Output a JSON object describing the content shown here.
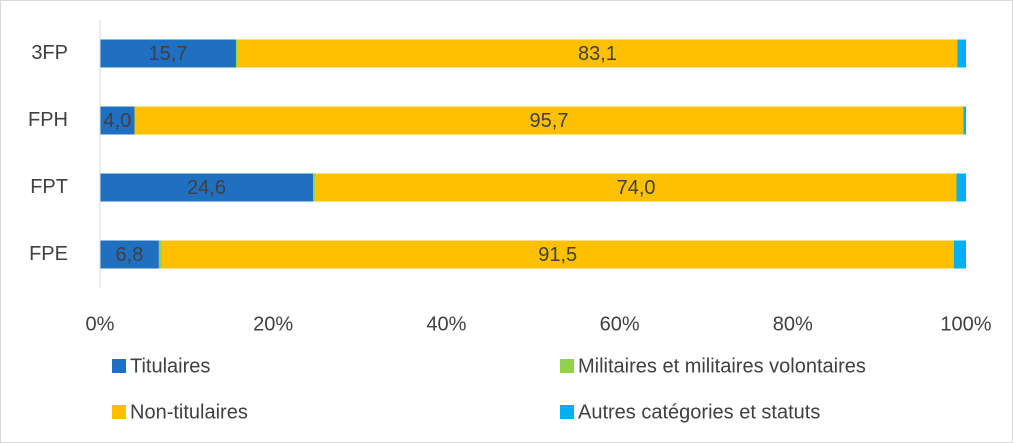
{
  "chart_data": {
    "type": "stacked-barh",
    "categories": [
      "3FP",
      "FPH",
      "FPT",
      "FPE"
    ],
    "series": [
      {
        "name": "Titulaires",
        "color": "#1f70c1",
        "values": [
          15.7,
          4.0,
          24.6,
          6.8
        ],
        "value_labels": [
          "15,7",
          "4,0",
          "24,6",
          "6,8"
        ]
      },
      {
        "name": "Militaires et militaires volontaires",
        "color": "#92d050",
        "values": [
          0.2,
          0,
          0.3,
          0.3
        ]
      },
      {
        "name": "Non-titulaires",
        "color": "#ffc000",
        "values": [
          83.1,
          95.7,
          74.0,
          91.5
        ],
        "value_labels": [
          "83,1",
          "95,7",
          "74,0",
          "91,5"
        ]
      },
      {
        "name": "Autres catégories et statuts",
        "color": "#00b0f0",
        "values": [
          1.0,
          0.3,
          1.1,
          1.4
        ]
      }
    ],
    "xlim": [
      0,
      100
    ],
    "xticks": [
      {
        "value": 0,
        "label": "0%"
      },
      {
        "value": 20,
        "label": "20%"
      },
      {
        "value": 40,
        "label": "40%"
      },
      {
        "value": 60,
        "label": "60%"
      },
      {
        "value": 80,
        "label": "80%"
      },
      {
        "value": 100,
        "label": "100%"
      }
    ],
    "grid": false
  }
}
